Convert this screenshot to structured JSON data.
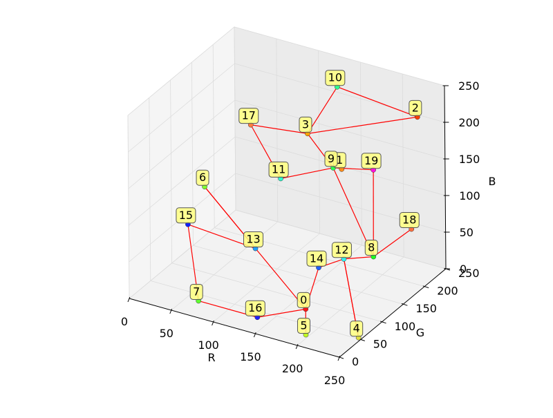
{
  "chart_data": {
    "type": "scatter",
    "projection": "3d",
    "title": "",
    "xlabel": "R",
    "ylabel": "G",
    "zlabel": "B",
    "xlim": [
      0,
      250
    ],
    "ylim": [
      0,
      250
    ],
    "zlim": [
      0,
      250
    ],
    "xticks": [
      "0",
      "50",
      "100",
      "150",
      "200",
      "250"
    ],
    "yticks": [
      "0",
      "50",
      "100",
      "150",
      "200",
      "250"
    ],
    "zticks": [
      "0",
      "50",
      "100",
      "150",
      "200",
      "250"
    ],
    "grid": true,
    "line_color": "#ff0000",
    "label_box_color": "#ffff80",
    "points": [
      {
        "label": "0",
        "x": 200,
        "y": 20,
        "z": 40,
        "color": "#ff1a1a"
      },
      {
        "label": "1",
        "x": 165,
        "y": 175,
        "z": 145,
        "color": "#ff8c1a"
      },
      {
        "label": "2",
        "x": 220,
        "y": 245,
        "z": 200,
        "color": "#ff4000"
      },
      {
        "label": "3",
        "x": 140,
        "y": 145,
        "z": 200,
        "color": "#ffa000"
      },
      {
        "label": "4",
        "x": 250,
        "y": 45,
        "z": 5,
        "color": "#e0e040"
      },
      {
        "label": "5",
        "x": 200,
        "y": 20,
        "z": 5,
        "color": "#c0ff20"
      },
      {
        "label": "6",
        "x": 50,
        "y": 80,
        "z": 130,
        "color": "#80ff30"
      },
      {
        "label": "7",
        "x": 80,
        "y": 5,
        "z": 20,
        "color": "#60ff30"
      },
      {
        "label": "8",
        "x": 220,
        "y": 140,
        "z": 60,
        "color": "#20ff20"
      },
      {
        "label": "9",
        "x": 160,
        "y": 165,
        "z": 150,
        "color": "#30ff50"
      },
      {
        "label": "10",
        "x": 140,
        "y": 215,
        "z": 230,
        "color": "#30ff90"
      },
      {
        "label": "11",
        "x": 105,
        "y": 150,
        "z": 125,
        "color": "#30ffd0"
      },
      {
        "label": "12",
        "x": 200,
        "y": 110,
        "z": 65,
        "color": "#30f0f0"
      },
      {
        "label": "13",
        "x": 110,
        "y": 80,
        "z": 65,
        "color": "#20a0ff"
      },
      {
        "label": "14",
        "x": 175,
        "y": 100,
        "z": 50,
        "color": "#2060ff"
      },
      {
        "label": "15",
        "x": 40,
        "y": 60,
        "z": 85,
        "color": "#1020ff"
      },
      {
        "label": "16",
        "x": 150,
        "y": 5,
        "z": 20,
        "color": "#2020ff"
      },
      {
        "label": "17",
        "x": 80,
        "y": 130,
        "z": 200,
        "color": "#ff7f40"
      },
      {
        "label": "18",
        "x": 240,
        "y": 190,
        "z": 80,
        "color": "#ff7040"
      },
      {
        "label": "19",
        "x": 190,
        "y": 200,
        "z": 140,
        "color": "#ff10e0"
      }
    ],
    "path": [
      5,
      0,
      16,
      7,
      15,
      13,
      6,
      13,
      0,
      14,
      12,
      4,
      12,
      8,
      9,
      3,
      10,
      2,
      3,
      17,
      11,
      9,
      19,
      8,
      18
    ]
  }
}
